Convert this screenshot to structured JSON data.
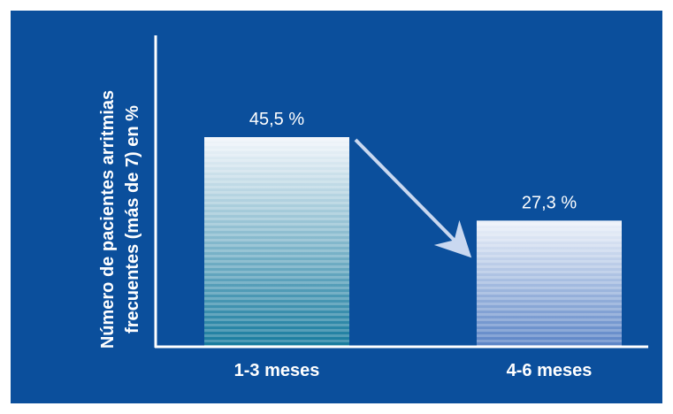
{
  "colors": {
    "background": "#0B4F9C",
    "axis": "#ffffff",
    "text": "#ffffff",
    "arrow": "#C9D8F0",
    "bar1_top": "#F2F6FB",
    "bar1_bottom": "#177B9E",
    "bar2_top": "#EEF3FA",
    "bar2_bottom": "#5B84C6"
  },
  "chart_data": {
    "type": "bar",
    "title": "",
    "xlabel": "",
    "ylabel_lines": [
      "Número de pacientes arritmias",
      "frecuentes (más de 7) en %"
    ],
    "categories": [
      "1-3 meses",
      "4-6 meses"
    ],
    "values": [
      45.5,
      27.3
    ],
    "value_labels": [
      "45,5 %",
      "27,3 %"
    ],
    "ylim": [
      0,
      50
    ],
    "grid": false,
    "annotation": "arrow-decrease-from-bar1-to-bar2"
  }
}
